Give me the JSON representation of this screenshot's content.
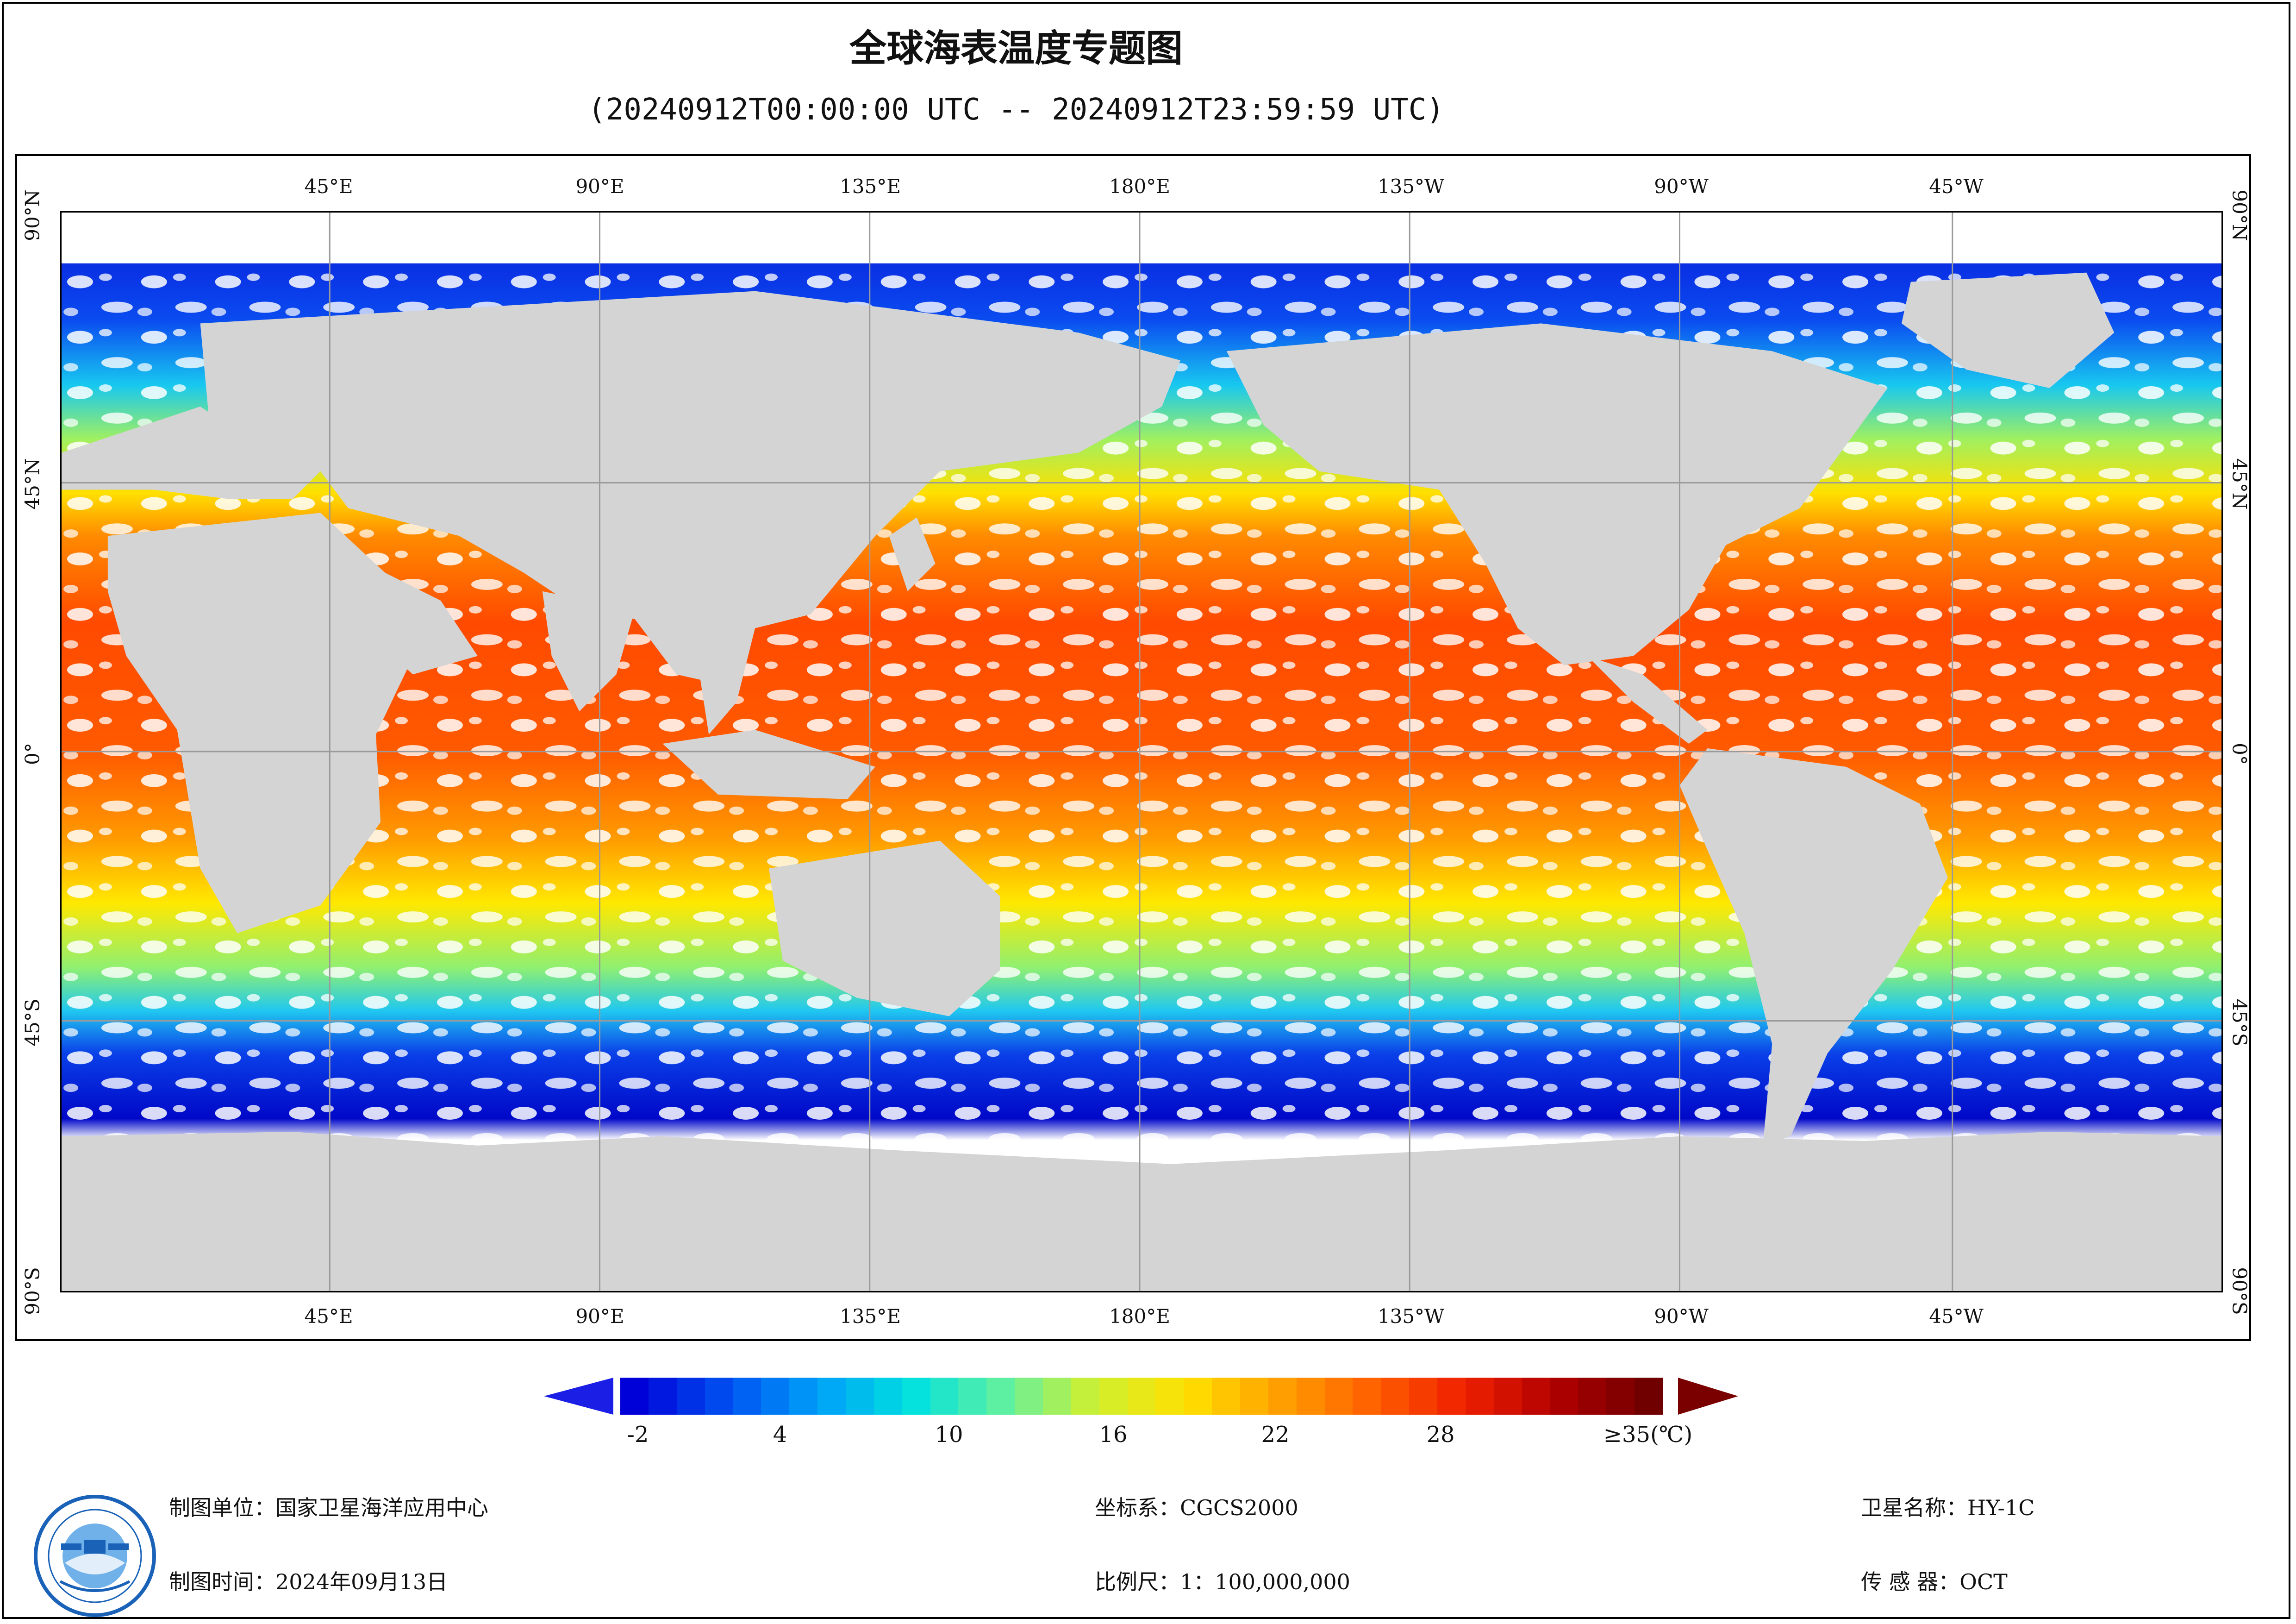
{
  "title": "全球海表温度专题图",
  "subtitle": "(20240912T00:00:00 UTC -- 20240912T23:59:59 UTC)",
  "map": {
    "lon_labels": [
      "45°E",
      "90°E",
      "135°E",
      "180°E",
      "135°W",
      "90°W",
      "45°W"
    ],
    "lat_labels": [
      "90°N",
      "45°N",
      "0°",
      "45°S",
      "90°S"
    ],
    "land_color": "#d4d4d4",
    "no_data_color": "#ffffff",
    "grid_color": "#9a9a9a"
  },
  "colorbar": {
    "ticks": [
      "-2",
      "4",
      "10",
      "16",
      "22",
      "28",
      "≥35(℃)"
    ],
    "min": -2,
    "max": 35,
    "unit": "℃",
    "under_color": "#1b1fe5",
    "over_color": "#7a0000",
    "stops": [
      "#0000d8",
      "#0050f0",
      "#00a0f8",
      "#00e0e0",
      "#60f0a0",
      "#d0f030",
      "#ffe000",
      "#ffa000",
      "#ff6000",
      "#f02000",
      "#b00000",
      "#700000"
    ]
  },
  "info": {
    "unit": "制图单位：国家卫星海洋应用中心",
    "time": "制图时间：2024年09月13日",
    "crs": "坐标系：CGCS2000",
    "scale": "比例尺：1：100,000,000",
    "satellite": "卫星名称：HY-1C",
    "sensor": "传  感  器：OCT"
  }
}
